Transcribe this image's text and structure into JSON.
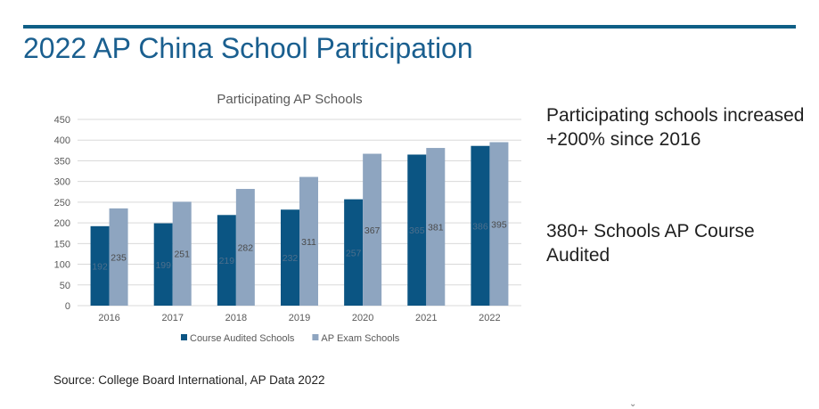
{
  "slide": {
    "title": "2022 AP China School Participation",
    "side_text_1": "Participating schools increased +200% since 2016",
    "side_text_2": "380+ Schools AP Course Audited",
    "source": "Source: College Board International, AP Data 2022"
  },
  "chart_data": {
    "type": "bar",
    "title": "Participating AP Schools",
    "categories": [
      "2016",
      "2017",
      "2018",
      "2019",
      "2020",
      "2021",
      "2022"
    ],
    "series": [
      {
        "name": "Course Audited Schools",
        "values": [
          192,
          199,
          219,
          232,
          257,
          365,
          386
        ],
        "color": "#0b5583"
      },
      {
        "name": "AP Exam Schools",
        "values": [
          235,
          251,
          282,
          311,
          367,
          381,
          395
        ],
        "color": "#8ea5c0"
      }
    ],
    "ylim": [
      0,
      450
    ],
    "yticks": [
      "0",
      "50",
      "100",
      "150",
      "200",
      "250",
      "300",
      "350",
      "400",
      "450"
    ],
    "grid": true,
    "legend_position": "bottom"
  }
}
